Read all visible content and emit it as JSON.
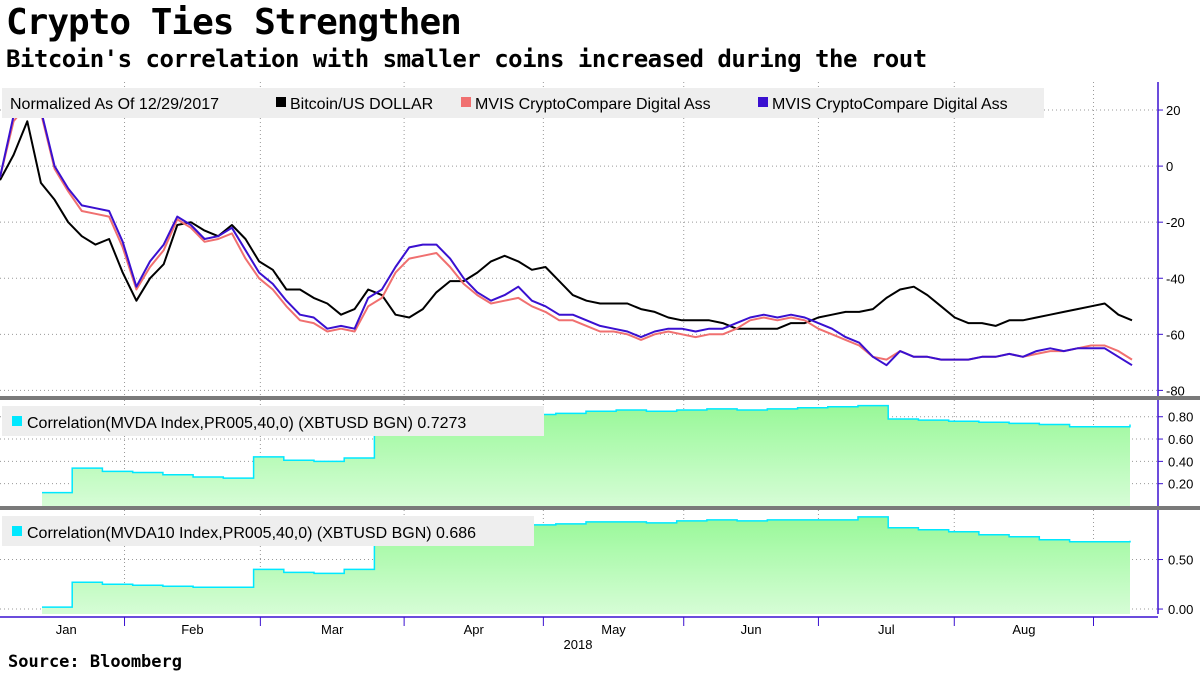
{
  "title": "Crypto Ties Strengthen",
  "subtitle": "Bitcoin's correlation with smaller coins increased during the rout",
  "source": "Source: Bloomberg",
  "colors": {
    "bitcoin": "#000000",
    "mvda": "#f07070",
    "mvda10": "#3a10d0",
    "corr_fill_top": "#98f898",
    "corr_fill_bottom": "#d6fdd6",
    "corr_line": "#00e8ff",
    "axis": "#3a10d0",
    "grid": "#999999",
    "legend_bg": "#eeeeee"
  },
  "chart_data": [
    {
      "type": "line",
      "panel": "price",
      "legend": {
        "label": "Normalized As Of 12/29/2017",
        "items": [
          "Bitcoin/US DOLLAR",
          "MVIS CryptoCompare Digital Ass",
          "MVIS CryptoCompare Digital Ass"
        ]
      },
      "x": [
        "Jan 1",
        "Jan 4",
        "Jan 7",
        "Jan 10",
        "Jan 13",
        "Jan 16",
        "Jan 19",
        "Jan 22",
        "Jan 25",
        "Jan 28",
        "Jan 31",
        "Feb 3",
        "Feb 6",
        "Feb 9",
        "Feb 12",
        "Feb 15",
        "Feb 18",
        "Feb 21",
        "Feb 24",
        "Feb 27",
        "Mar 2",
        "Mar 5",
        "Mar 8",
        "Mar 11",
        "Mar 14",
        "Mar 17",
        "Mar 20",
        "Mar 23",
        "Mar 26",
        "Mar 29",
        "Apr 1",
        "Apr 4",
        "Apr 7",
        "Apr 10",
        "Apr 13",
        "Apr 16",
        "Apr 19",
        "Apr 22",
        "Apr 25",
        "Apr 28",
        "May 1",
        "May 4",
        "May 7",
        "May 10",
        "May 13",
        "May 16",
        "May 19",
        "May 22",
        "May 25",
        "May 28",
        "May 31",
        "Jun 3",
        "Jun 6",
        "Jun 9",
        "Jun 12",
        "Jun 15",
        "Jun 18",
        "Jun 21",
        "Jun 24",
        "Jun 27",
        "Jun 30",
        "Jul 3",
        "Jul 6",
        "Jul 9",
        "Jul 12",
        "Jul 15",
        "Jul 18",
        "Jul 21",
        "Jul 24",
        "Jul 27",
        "Jul 30",
        "Aug 2",
        "Aug 5",
        "Aug 8",
        "Aug 11",
        "Aug 14",
        "Aug 17",
        "Aug 20",
        "Aug 23",
        "Aug 26",
        "Aug 29",
        "Sep 1",
        "Sep 4",
        "Sep 5"
      ],
      "series": [
        {
          "name": "Bitcoin/US DOLLAR",
          "values": [
            -5,
            4,
            16,
            -6,
            -12,
            -20,
            -25,
            -28,
            -26,
            -38,
            -48,
            -40,
            -35,
            -21,
            -20,
            -23,
            -25,
            -21,
            -26,
            -34,
            -37,
            -44,
            -44,
            -47,
            -49,
            -53,
            -51,
            -44,
            -46,
            -53,
            -54,
            -51,
            -45,
            -41,
            -41,
            -38,
            -34,
            -32,
            -34,
            -37,
            -36,
            -41,
            -46,
            -48,
            -49,
            -49,
            -49,
            -51,
            -52,
            -54,
            -55,
            -55,
            -55,
            -56,
            -58,
            -58,
            -58,
            -58,
            -56,
            -56,
            -54,
            -53,
            -52,
            -52,
            -51,
            -47,
            -44,
            -43,
            -46,
            -50,
            -54,
            -56,
            -56,
            -57,
            -55,
            -55,
            -54,
            -53,
            -52,
            -51,
            -50,
            -49,
            -53,
            -55
          ]
        },
        {
          "name": "MVIS CryptoCompare Digital Ass",
          "values": [
            -4,
            16,
            22,
            19,
            -1,
            -9,
            -16,
            -17,
            -18,
            -29,
            -44,
            -36,
            -30,
            -19,
            -22,
            -27,
            -26,
            -24,
            -33,
            -40,
            -44,
            -50,
            -55,
            -56,
            -59,
            -58,
            -59,
            -50,
            -47,
            -38,
            -33,
            -32,
            -31,
            -36,
            -42,
            -46,
            -49,
            -48,
            -47,
            -50,
            -52,
            -55,
            -55,
            -57,
            -59,
            -59,
            -60,
            -62,
            -60,
            -59,
            -60,
            -61,
            -60,
            -60,
            -58,
            -55,
            -54,
            -55,
            -54,
            -55,
            -58,
            -60,
            -62,
            -64,
            -68,
            -69,
            -66,
            -68,
            -68,
            -69,
            -69,
            -69,
            -68,
            -68,
            -67,
            -68,
            -67,
            -66,
            -66,
            -65,
            -64,
            -64,
            -66,
            -69
          ]
        },
        {
          "name": "MVIS CryptoCompare Digital Ass",
          "values": [
            -4,
            18,
            25,
            20,
            0,
            -8,
            -14,
            -15,
            -16,
            -27,
            -43,
            -34,
            -28,
            -18,
            -21,
            -26,
            -25,
            -22,
            -30,
            -38,
            -42,
            -48,
            -53,
            -54,
            -58,
            -57,
            -58,
            -47,
            -44,
            -36,
            -29,
            -28,
            -28,
            -33,
            -40,
            -45,
            -48,
            -46,
            -43,
            -48,
            -50,
            -53,
            -53,
            -55,
            -57,
            -58,
            -59,
            -61,
            -59,
            -58,
            -58,
            -59,
            -58,
            -58,
            -56,
            -54,
            -53,
            -54,
            -53,
            -54,
            -56,
            -58,
            -61,
            -63,
            -68,
            -71,
            -66,
            -68,
            -68,
            -69,
            -69,
            -69,
            -68,
            -68,
            -67,
            -68,
            -66,
            -65,
            -66,
            -65,
            -65,
            -65,
            -68,
            -71
          ]
        }
      ],
      "yticks": [
        "20",
        "0",
        "-20",
        "-40",
        "-60",
        "-80"
      ],
      "ylim": [
        -82,
        30
      ],
      "grid": true
    },
    {
      "type": "area",
      "panel": "correlation",
      "legend": {
        "label": "Correlation(MVDA Index,PR005,40,0) (XBTUSD BGN) 0.7273"
      },
      "x": [
        "Jan 1",
        "Jan 7",
        "Jan 14",
        "Jan 21",
        "Jan 28",
        "Feb 4",
        "Feb 11",
        "Feb 18",
        "Feb 25",
        "Mar 4",
        "Mar 11",
        "Mar 18",
        "Mar 25",
        "Apr 1",
        "Apr 8",
        "Apr 15",
        "Apr 22",
        "Apr 29",
        "May 6",
        "May 13",
        "May 20",
        "May 27",
        "Jun 3",
        "Jun 10",
        "Jun 17",
        "Jun 24",
        "Jul 1",
        "Jul 8",
        "Jul 15",
        "Jul 22",
        "Jul 29",
        "Aug 5",
        "Aug 12",
        "Aug 19",
        "Aug 26",
        "Sep 2",
        "Sep 5"
      ],
      "values": [
        0.12,
        0.34,
        0.31,
        0.3,
        0.28,
        0.26,
        0.25,
        0.44,
        0.41,
        0.4,
        0.43,
        0.76,
        0.78,
        0.77,
        0.78,
        0.8,
        0.82,
        0.83,
        0.85,
        0.86,
        0.85,
        0.86,
        0.87,
        0.86,
        0.87,
        0.88,
        0.89,
        0.9,
        0.78,
        0.77,
        0.76,
        0.75,
        0.74,
        0.73,
        0.71,
        0.71,
        0.73
      ],
      "yticks": [
        "0.80",
        "0.60",
        "0.40",
        "0.20"
      ],
      "ylim": [
        0.0,
        0.95
      ],
      "grid": true
    },
    {
      "type": "area",
      "panel": "correlation",
      "legend": {
        "label": "Correlation(MVDA10 Index,PR005,40,0) (XBTUSD BGN) 0.686"
      },
      "x": [
        "Jan 1",
        "Jan 7",
        "Jan 14",
        "Jan 21",
        "Jan 28",
        "Feb 4",
        "Feb 11",
        "Feb 18",
        "Feb 25",
        "Mar 4",
        "Mar 11",
        "Mar 18",
        "Mar 25",
        "Apr 1",
        "Apr 8",
        "Apr 15",
        "Apr 22",
        "Apr 29",
        "May 6",
        "May 13",
        "May 20",
        "May 27",
        "Jun 3",
        "Jun 10",
        "Jun 17",
        "Jun 24",
        "Jul 1",
        "Jul 8",
        "Jul 15",
        "Jul 22",
        "Jul 29",
        "Aug 5",
        "Aug 12",
        "Aug 19",
        "Aug 26",
        "Sep 2",
        "Sep 5"
      ],
      "values": [
        0.02,
        0.27,
        0.25,
        0.24,
        0.23,
        0.22,
        0.22,
        0.4,
        0.37,
        0.36,
        0.4,
        0.75,
        0.77,
        0.79,
        0.8,
        0.83,
        0.85,
        0.86,
        0.88,
        0.88,
        0.87,
        0.89,
        0.9,
        0.89,
        0.9,
        0.9,
        0.9,
        0.93,
        0.82,
        0.8,
        0.78,
        0.75,
        0.73,
        0.7,
        0.68,
        0.68,
        0.69
      ],
      "yticks": [
        "0.50",
        "0.00"
      ],
      "ylim": [
        -0.05,
        1.0
      ],
      "grid": true
    }
  ],
  "xaxis": {
    "months": [
      "Jan",
      "Feb",
      "Mar",
      "Apr",
      "May",
      "Jun",
      "Jul",
      "Aug"
    ],
    "year": "2018"
  }
}
